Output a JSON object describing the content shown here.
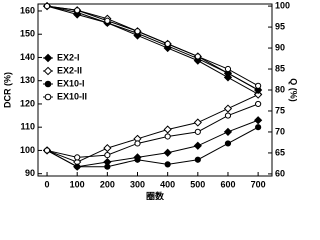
{
  "chart_data": {
    "type": "line",
    "x_label": "圈数",
    "y_label": "DCR (%)",
    "y2_label": "Q (%)",
    "x": [
      0,
      100,
      200,
      300,
      400,
      500,
      600,
      700
    ],
    "xlim": [
      -30,
      746
    ],
    "xticks": [
      0,
      100,
      200,
      300,
      400,
      500,
      600,
      700
    ],
    "ylim": [
      89,
      163
    ],
    "yticks": [
      90,
      100,
      110,
      120,
      130,
      140,
      150,
      160
    ],
    "y2lim": [
      59.5,
      100.5
    ],
    "y2ticks": [
      60,
      65,
      70,
      75,
      80,
      85,
      90,
      95,
      100
    ],
    "legend": "left",
    "series": [
      {
        "name": "EX2-I",
        "color": "#000000",
        "marker": "diamond",
        "filled": true,
        "values": [
          100,
          93,
          95,
          97,
          99,
          102,
          108,
          113
        ],
        "y2_values": [
          100,
          98,
          96,
          93,
          90,
          87,
          83,
          79
        ]
      },
      {
        "name": "EX2-II",
        "color": "#000000",
        "marker": "diamond",
        "filled": false,
        "values": [
          100,
          95,
          101,
          105,
          109,
          112,
          118,
          124
        ],
        "y2_values": [
          100,
          99,
          97,
          94,
          91,
          88,
          84,
          80
        ]
      },
      {
        "name": "EX10-I",
        "color": "#000000",
        "marker": "circle",
        "filled": true,
        "values": [
          100,
          93,
          93,
          96,
          94,
          96,
          103,
          110
        ],
        "y2_values": [
          100,
          98.5,
          96,
          93.5,
          90.5,
          87.5,
          84,
          80
        ]
      },
      {
        "name": "EX10-II",
        "color": "#000000",
        "marker": "circle",
        "filled": false,
        "values": [
          100,
          97,
          98,
          103,
          106,
          108,
          115,
          120
        ],
        "y2_values": [
          100,
          99,
          96.5,
          94,
          91,
          88,
          85,
          81
        ]
      }
    ]
  }
}
